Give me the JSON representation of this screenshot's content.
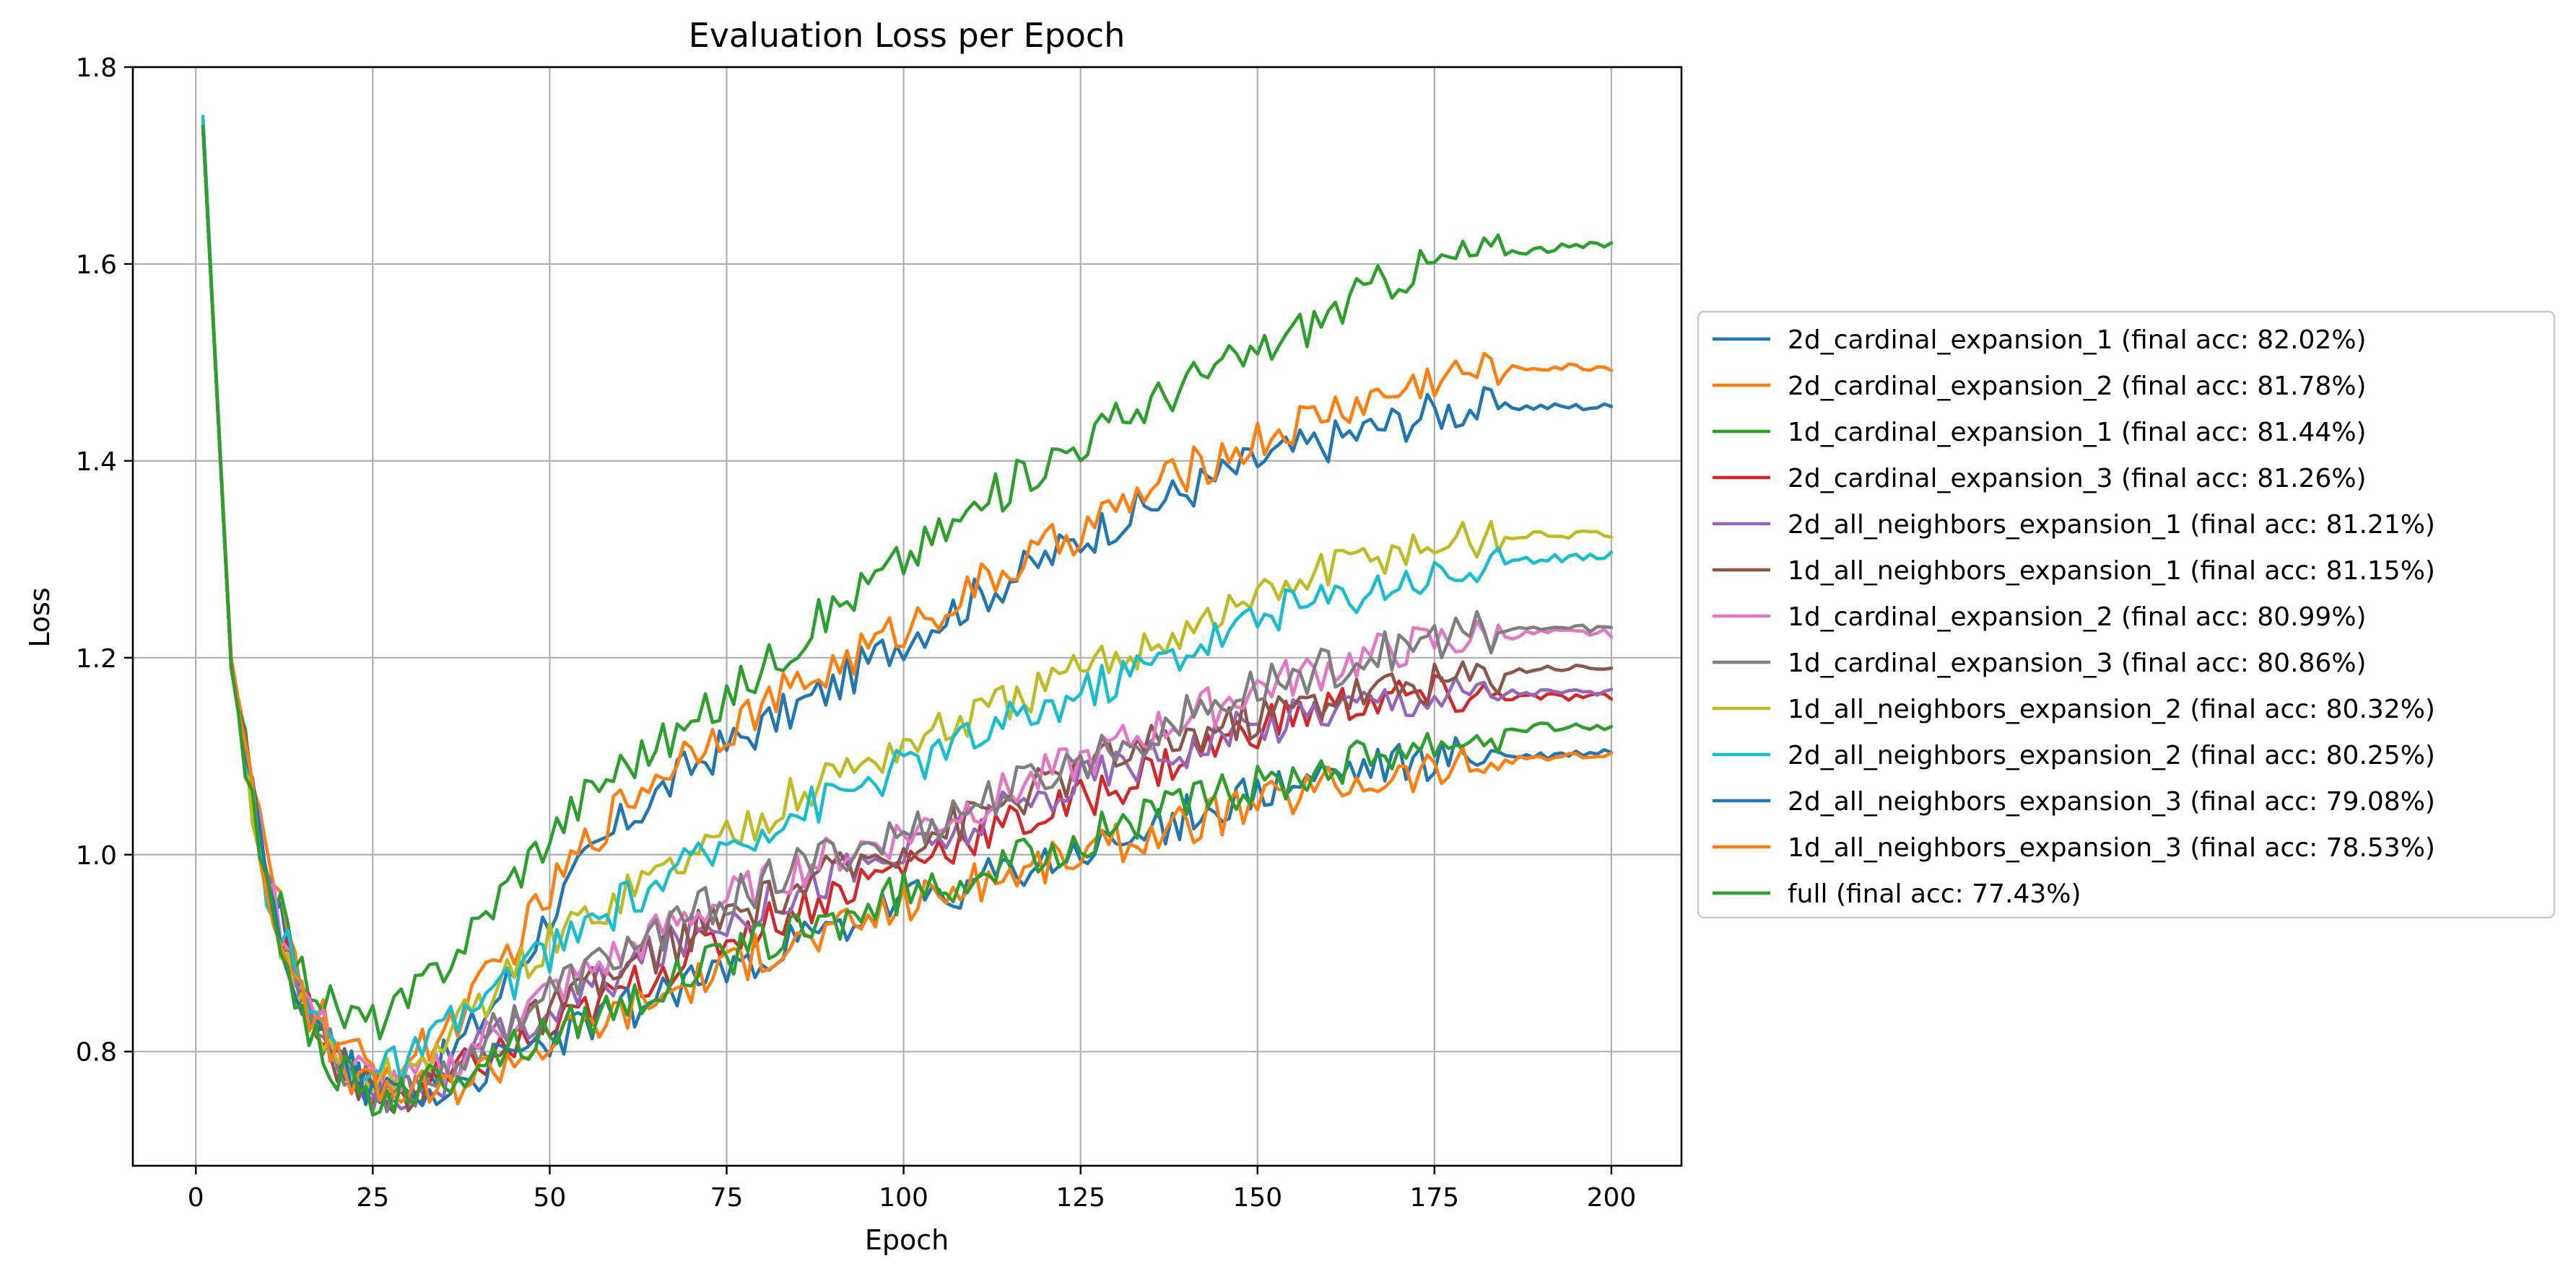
{
  "chart_data": {
    "type": "line",
    "title": "Evaluation Loss per Epoch",
    "xlabel": "Epoch",
    "ylabel": "Loss",
    "xlim": [
      -8.9,
      209.9
    ],
    "ylim": [
      0.684,
      1.8
    ],
    "xticks": [
      0,
      25,
      50,
      75,
      100,
      125,
      150,
      175,
      200
    ],
    "xtick_labels": [
      "0",
      "25",
      "50",
      "75",
      "100",
      "125",
      "150",
      "175",
      "200"
    ],
    "yticks": [
      0.8,
      1.0,
      1.2,
      1.4,
      1.6,
      1.8
    ],
    "ytick_labels": [
      "0.8",
      "1.0",
      "1.2",
      "1.4",
      "1.6",
      "1.8"
    ],
    "grid": true,
    "legend_position": "outside-right",
    "series": [
      {
        "name": "2d_cardinal_expansion_1 (final acc: 82.02%)",
        "color": "#1f77b4",
        "x": [
          1,
          5,
          10,
          15,
          20,
          25,
          30,
          35,
          40,
          45,
          50,
          55,
          60,
          65,
          70,
          75,
          80,
          90,
          100,
          110,
          120,
          130,
          140,
          150,
          160,
          170,
          175,
          185,
          190,
          200
        ],
        "y": [
          1.74,
          1.19,
          0.98,
          0.86,
          0.8,
          0.76,
          0.77,
          0.79,
          0.83,
          0.88,
          0.94,
          0.99,
          1.03,
          1.06,
          1.09,
          1.11,
          1.13,
          1.17,
          1.22,
          1.26,
          1.3,
          1.34,
          1.37,
          1.4,
          1.42,
          1.44,
          1.45,
          1.455,
          1.455,
          1.455
        ]
      },
      {
        "name": "2d_cardinal_expansion_2 (final acc: 81.78%)",
        "color": "#ff7f0e",
        "x": [
          1,
          5,
          10,
          15,
          20,
          25,
          30,
          35,
          40,
          45,
          50,
          55,
          60,
          65,
          70,
          75,
          80,
          90,
          100,
          110,
          120,
          130,
          140,
          150,
          160,
          170,
          175,
          180,
          190,
          200
        ],
        "y": [
          1.74,
          1.2,
          0.99,
          0.87,
          0.81,
          0.78,
          0.79,
          0.82,
          0.86,
          0.91,
          0.96,
          1.01,
          1.05,
          1.08,
          1.11,
          1.13,
          1.15,
          1.19,
          1.23,
          1.27,
          1.31,
          1.35,
          1.39,
          1.42,
          1.45,
          1.47,
          1.485,
          1.49,
          1.495,
          1.495
        ]
      },
      {
        "name": "1d_cardinal_expansion_1 (final acc: 81.44%)",
        "color": "#2ca02c",
        "x": [
          1,
          5,
          10,
          15,
          20,
          25,
          30,
          35,
          40,
          45,
          50,
          55,
          60,
          65,
          70,
          75,
          80,
          90,
          100,
          110,
          120,
          130,
          140,
          150,
          160,
          170,
          175,
          180,
          190,
          200
        ],
        "y": [
          1.74,
          1.19,
          0.98,
          0.88,
          0.84,
          0.83,
          0.85,
          0.89,
          0.93,
          0.98,
          1.02,
          1.06,
          1.09,
          1.11,
          1.13,
          1.16,
          1.19,
          1.25,
          1.3,
          1.35,
          1.4,
          1.44,
          1.48,
          1.51,
          1.55,
          1.59,
          1.6,
          1.61,
          1.615,
          1.62
        ]
      },
      {
        "name": "2d_cardinal_expansion_3 (final acc: 81.26%)",
        "color": "#d62728",
        "x": [
          1,
          5,
          10,
          15,
          20,
          25,
          30,
          35,
          40,
          50,
          60,
          70,
          80,
          90,
          100,
          110,
          120,
          130,
          140,
          150,
          160,
          170,
          180,
          190,
          200
        ],
        "y": [
          1.74,
          1.19,
          0.97,
          0.85,
          0.79,
          0.76,
          0.76,
          0.77,
          0.79,
          0.82,
          0.86,
          0.9,
          0.93,
          0.96,
          0.99,
          1.02,
          1.04,
          1.07,
          1.1,
          1.13,
          1.15,
          1.16,
          1.16,
          1.16,
          1.16
        ]
      },
      {
        "name": "2d_all_neighbors_expansion_1 (final acc: 81.21%)",
        "color": "#9467bd",
        "x": [
          1,
          5,
          10,
          15,
          20,
          25,
          30,
          35,
          40,
          50,
          60,
          70,
          80,
          90,
          100,
          110,
          120,
          130,
          140,
          150,
          160,
          170,
          180,
          190,
          200
        ],
        "y": [
          1.74,
          1.19,
          0.97,
          0.85,
          0.79,
          0.76,
          0.76,
          0.77,
          0.8,
          0.84,
          0.88,
          0.92,
          0.95,
          0.98,
          1.0,
          1.03,
          1.06,
          1.09,
          1.11,
          1.13,
          1.15,
          1.16,
          1.165,
          1.165,
          1.165
        ]
      },
      {
        "name": "1d_all_neighbors_expansion_1 (final acc: 81.15%)",
        "color": "#8c564b",
        "x": [
          1,
          5,
          10,
          15,
          20,
          25,
          30,
          35,
          40,
          50,
          60,
          70,
          80,
          90,
          100,
          110,
          120,
          130,
          140,
          150,
          160,
          170,
          180,
          190,
          200
        ],
        "y": [
          1.74,
          1.19,
          0.97,
          0.85,
          0.79,
          0.76,
          0.76,
          0.77,
          0.8,
          0.84,
          0.88,
          0.92,
          0.95,
          0.98,
          1.01,
          1.04,
          1.07,
          1.1,
          1.12,
          1.14,
          1.16,
          1.17,
          1.18,
          1.19,
          1.19
        ]
      },
      {
        "name": "1d_cardinal_expansion_2 (final acc: 80.99%)",
        "color": "#e377c2",
        "x": [
          1,
          5,
          10,
          15,
          20,
          25,
          30,
          35,
          40,
          50,
          60,
          70,
          80,
          90,
          100,
          110,
          120,
          130,
          140,
          150,
          160,
          170,
          180,
          190,
          200
        ],
        "y": [
          1.74,
          1.19,
          0.98,
          0.86,
          0.8,
          0.77,
          0.77,
          0.78,
          0.81,
          0.86,
          0.9,
          0.94,
          0.97,
          1.0,
          1.02,
          1.05,
          1.08,
          1.11,
          1.14,
          1.17,
          1.19,
          1.21,
          1.22,
          1.225,
          1.225
        ]
      },
      {
        "name": "1d_cardinal_expansion_3 (final acc: 80.86%)",
        "color": "#7f7f7f",
        "x": [
          1,
          5,
          10,
          15,
          20,
          25,
          30,
          35,
          40,
          50,
          60,
          70,
          80,
          90,
          100,
          110,
          120,
          130,
          140,
          150,
          160,
          170,
          180,
          190,
          200
        ],
        "y": [
          1.74,
          1.19,
          0.97,
          0.85,
          0.79,
          0.76,
          0.76,
          0.78,
          0.81,
          0.86,
          0.9,
          0.94,
          0.97,
          1.0,
          1.02,
          1.05,
          1.08,
          1.11,
          1.14,
          1.17,
          1.19,
          1.21,
          1.225,
          1.23,
          1.23
        ]
      },
      {
        "name": "1d_all_neighbors_expansion_2 (final acc: 80.32%)",
        "color": "#bcbd22",
        "x": [
          1,
          5,
          10,
          15,
          20,
          25,
          30,
          35,
          40,
          50,
          60,
          70,
          80,
          90,
          100,
          110,
          120,
          130,
          140,
          150,
          160,
          170,
          180,
          190,
          200
        ],
        "y": [
          1.74,
          1.19,
          0.96,
          0.84,
          0.79,
          0.77,
          0.78,
          0.81,
          0.85,
          0.91,
          0.96,
          1.0,
          1.04,
          1.08,
          1.11,
          1.14,
          1.17,
          1.2,
          1.23,
          1.26,
          1.29,
          1.31,
          1.32,
          1.325,
          1.325
        ]
      },
      {
        "name": "2d_all_neighbors_expansion_2 (final acc: 80.25%)",
        "color": "#17becf",
        "x": [
          1,
          5,
          10,
          15,
          20,
          25,
          30,
          35,
          40,
          50,
          60,
          70,
          80,
          90,
          100,
          110,
          120,
          130,
          140,
          150,
          160,
          170,
          180,
          190,
          200
        ],
        "y": [
          1.75,
          1.19,
          0.97,
          0.86,
          0.8,
          0.78,
          0.79,
          0.82,
          0.85,
          0.9,
          0.95,
          0.99,
          1.03,
          1.06,
          1.09,
          1.12,
          1.15,
          1.18,
          1.21,
          1.24,
          1.26,
          1.28,
          1.29,
          1.3,
          1.305
        ]
      },
      {
        "name": "2d_all_neighbors_expansion_3 (final acc: 79.08%)",
        "color": "#1f77b4",
        "x": [
          1,
          5,
          10,
          15,
          20,
          25,
          30,
          35,
          40,
          50,
          60,
          70,
          80,
          90,
          100,
          110,
          120,
          130,
          140,
          150,
          160,
          170,
          180,
          190,
          200
        ],
        "y": [
          1.74,
          1.19,
          0.97,
          0.85,
          0.79,
          0.76,
          0.76,
          0.76,
          0.78,
          0.81,
          0.84,
          0.87,
          0.9,
          0.92,
          0.95,
          0.97,
          0.99,
          1.01,
          1.04,
          1.06,
          1.08,
          1.09,
          1.1,
          1.1,
          1.105
        ]
      },
      {
        "name": "1d_all_neighbors_expansion_3 (final acc: 78.53%)",
        "color": "#ff7f0e",
        "x": [
          1,
          5,
          10,
          15,
          20,
          25,
          30,
          35,
          40,
          50,
          60,
          70,
          80,
          90,
          100,
          110,
          120,
          130,
          140,
          150,
          160,
          170,
          180,
          190,
          200
        ],
        "y": [
          1.74,
          1.19,
          0.97,
          0.85,
          0.79,
          0.76,
          0.76,
          0.76,
          0.78,
          0.81,
          0.84,
          0.87,
          0.9,
          0.92,
          0.95,
          0.97,
          0.99,
          1.01,
          1.03,
          1.05,
          1.07,
          1.08,
          1.09,
          1.1,
          1.1
        ]
      },
      {
        "name": "full (final acc: 77.43%)",
        "color": "#2ca02c",
        "x": [
          1,
          5,
          10,
          15,
          20,
          25,
          30,
          35,
          40,
          50,
          60,
          70,
          80,
          90,
          100,
          110,
          120,
          130,
          140,
          150,
          160,
          170,
          180,
          190,
          200
        ],
        "y": [
          1.74,
          1.19,
          0.96,
          0.84,
          0.78,
          0.75,
          0.76,
          0.77,
          0.79,
          0.82,
          0.85,
          0.88,
          0.91,
          0.93,
          0.96,
          0.98,
          1.0,
          1.03,
          1.05,
          1.07,
          1.09,
          1.11,
          1.12,
          1.13,
          1.13
        ]
      }
    ]
  }
}
